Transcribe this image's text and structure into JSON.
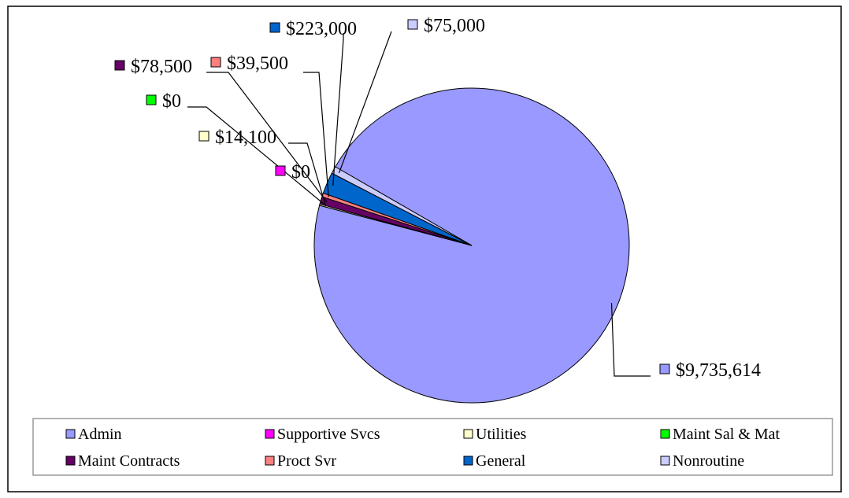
{
  "chart_data": {
    "type": "pie",
    "title": "",
    "legend_position": "bottom",
    "start_angle_deg": 300.0,
    "slices": [
      {
        "name": "Admin",
        "value": 9735614,
        "label": "$9,735,614",
        "color": "#9999ff"
      },
      {
        "name": "Supportive Svcs",
        "value": 0,
        "label": "$0",
        "color": "#ff00ff"
      },
      {
        "name": "Utilities",
        "value": 14100,
        "label": "$14,100",
        "color": "#ffffcc"
      },
      {
        "name": "Maint Sal & Mat",
        "value": 0,
        "label": "$0",
        "color": "#00ff00"
      },
      {
        "name": "Maint Contracts",
        "value": 78500,
        "label": "$78,500",
        "color": "#660066"
      },
      {
        "name": "Proct Svr",
        "value": 39500,
        "label": "$39,500",
        "color": "#ff8080"
      },
      {
        "name": "General",
        "value": 223000,
        "label": "$223,000",
        "color": "#0066cc"
      },
      {
        "name": "Nonroutine",
        "value": 75000,
        "label": "$75,000",
        "color": "#ccccff"
      }
    ]
  }
}
